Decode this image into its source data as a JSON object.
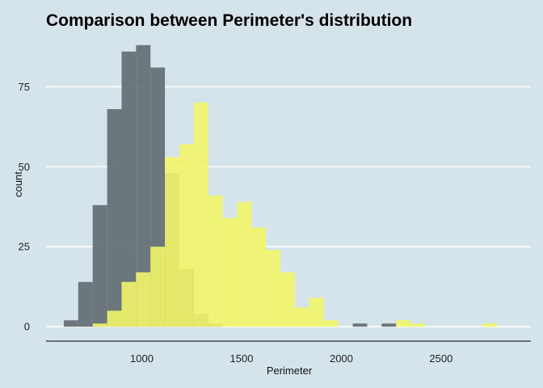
{
  "chart_data": {
    "type": "histogram",
    "title": "Comparison between Perimeter's distribution",
    "xlabel": "Perimeter",
    "ylabel": "count",
    "xlim": [
      520,
      2950
    ],
    "ylim": [
      -4.5,
      92
    ],
    "x_ticks": [
      1000,
      1500,
      2000,
      2500
    ],
    "y_ticks": [
      0,
      25,
      50,
      75
    ],
    "bin_width": 72.4,
    "grid": "horizontal-major",
    "legend": "none",
    "series": [
      {
        "color": "#5f6a70",
        "opacity": 0.9,
        "bins": [
          {
            "x0": 609.0,
            "x1": 681.4,
            "count": 2
          },
          {
            "x0": 681.4,
            "x1": 753.8,
            "count": 14
          },
          {
            "x0": 753.8,
            "x1": 826.2,
            "count": 38
          },
          {
            "x0": 826.2,
            "x1": 898.6,
            "count": 68
          },
          {
            "x0": 898.6,
            "x1": 971.0,
            "count": 86
          },
          {
            "x0": 971.0,
            "x1": 1043.4,
            "count": 88
          },
          {
            "x0": 1043.4,
            "x1": 1115.8,
            "count": 81
          },
          {
            "x0": 1115.8,
            "x1": 1188.2,
            "count": 48
          },
          {
            "x0": 1188.2,
            "x1": 1260.6,
            "count": 18
          },
          {
            "x0": 1260.6,
            "x1": 1333.0,
            "count": 4
          },
          {
            "x0": 1333.0,
            "x1": 1405.4,
            "count": 1
          },
          {
            "x0": 2057.4,
            "x1": 2129.8,
            "count": 1
          },
          {
            "x0": 2202.2,
            "x1": 2274.6,
            "count": 1
          }
        ]
      },
      {
        "color": "#f2f569",
        "opacity": 0.9,
        "bins": [
          {
            "x0": 753.8,
            "x1": 826.2,
            "count": 1
          },
          {
            "x0": 826.2,
            "x1": 898.6,
            "count": 5
          },
          {
            "x0": 898.6,
            "x1": 971.0,
            "count": 14
          },
          {
            "x0": 971.0,
            "x1": 1043.4,
            "count": 17
          },
          {
            "x0": 1043.4,
            "x1": 1115.8,
            "count": 25
          },
          {
            "x0": 1115.8,
            "x1": 1188.2,
            "count": 53
          },
          {
            "x0": 1188.2,
            "x1": 1260.6,
            "count": 57
          },
          {
            "x0": 1260.6,
            "x1": 1333.0,
            "count": 70
          },
          {
            "x0": 1333.0,
            "x1": 1405.4,
            "count": 41
          },
          {
            "x0": 1405.4,
            "x1": 1477.8,
            "count": 34
          },
          {
            "x0": 1477.8,
            "x1": 1550.2,
            "count": 39
          },
          {
            "x0": 1550.2,
            "x1": 1622.6,
            "count": 31
          },
          {
            "x0": 1622.6,
            "x1": 1695.0,
            "count": 24
          },
          {
            "x0": 1695.0,
            "x1": 1767.4,
            "count": 17
          },
          {
            "x0": 1767.4,
            "x1": 1839.8,
            "count": 6
          },
          {
            "x0": 1839.8,
            "x1": 1912.2,
            "count": 9
          },
          {
            "x0": 1912.2,
            "x1": 1984.6,
            "count": 2
          },
          {
            "x0": 2274.6,
            "x1": 2347.0,
            "count": 2
          },
          {
            "x0": 2347.0,
            "x1": 2419.4,
            "count": 1
          },
          {
            "x0": 2708.9,
            "x1": 2781.3,
            "count": 1
          }
        ]
      }
    ]
  },
  "colors": {
    "background": "#d5e4eb",
    "gridline": "#ffffff",
    "axis_line": "#000000"
  }
}
